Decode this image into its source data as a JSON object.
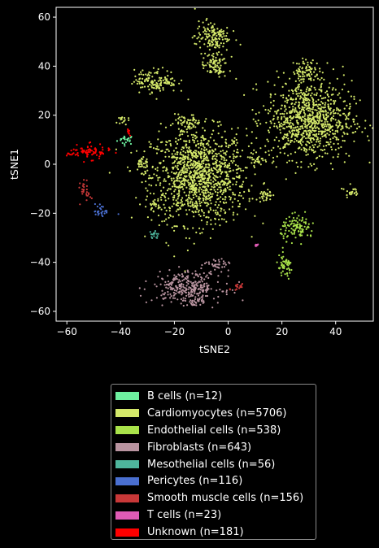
{
  "chart_data": {
    "type": "scatter",
    "xlabel": "tSNE2",
    "ylabel": "tSNE1",
    "xlim": [
      -64,
      54
    ],
    "ylim": [
      -64,
      64
    ],
    "xticks": [
      -60,
      -40,
      -20,
      0,
      20,
      40
    ],
    "yticks": [
      -60,
      -40,
      -20,
      0,
      20,
      40,
      60
    ],
    "grid": false,
    "legend_position": "below",
    "series": [
      {
        "name": "B cells (n=12)",
        "color": "#6ef0a0",
        "clusters": [
          [
            -38,
            10,
            2,
            1.2
          ]
        ]
      },
      {
        "name": "Cardiomyocytes (n=5706)",
        "color": "#d4e86a",
        "clusters": [
          [
            -11,
            -5,
            11,
            12
          ],
          [
            30,
            18,
            10,
            10
          ],
          [
            -6,
            52,
            4,
            4
          ],
          [
            -5,
            40,
            3,
            3
          ],
          [
            -27,
            34,
            5,
            3
          ],
          [
            29,
            38,
            3,
            3
          ],
          [
            46,
            -11,
            1.6,
            1.5
          ],
          [
            -40,
            18,
            1.5,
            1.2
          ],
          [
            -32,
            0,
            1.5,
            2.5
          ],
          [
            11,
            2,
            1.5,
            2
          ],
          [
            -27,
            -17,
            1.5,
            1.5
          ],
          [
            -15,
            17,
            3,
            2
          ],
          [
            14,
            -13,
            1.5,
            2
          ]
        ]
      },
      {
        "name": "Endothelial cells (n=538)",
        "color": "#a9e24a",
        "clusters": [
          [
            26,
            -26,
            4,
            3
          ],
          [
            21,
            -42,
            2,
            3
          ]
        ]
      },
      {
        "name": "Fibroblasts (n=643)",
        "color": "#b994a0",
        "clusters": [
          [
            -15,
            -50,
            8,
            4
          ],
          [
            -4,
            -41,
            2.5,
            1.5
          ],
          [
            -12,
            -56,
            3,
            1
          ]
        ]
      },
      {
        "name": "Mesothelial cells (n=56)",
        "color": "#4eb59c",
        "clusters": [
          [
            -28,
            -29,
            1.5,
            1.2
          ]
        ]
      },
      {
        "name": "Pericytes (n=116)",
        "color": "#4a6fd0",
        "clusters": [
          [
            -47,
            -19,
            1.8,
            1.8
          ]
        ]
      },
      {
        "name": "Smooth muscle cells (n=156)",
        "color": "#c83838",
        "clusters": [
          [
            -53,
            -11,
            1.2,
            2.5
          ],
          [
            4,
            -50,
            1.5,
            1.2
          ]
        ]
      },
      {
        "name": "T cells (n=23)",
        "color": "#e05bb5",
        "clusters": [
          [
            10,
            -33,
            1,
            0.5
          ]
        ]
      },
      {
        "name": "Unknown (n=181)",
        "color": "#ff0000",
        "clusters": [
          [
            -52,
            5,
            5,
            1.8
          ],
          [
            -37,
            13,
            0.5,
            1
          ]
        ]
      }
    ]
  }
}
